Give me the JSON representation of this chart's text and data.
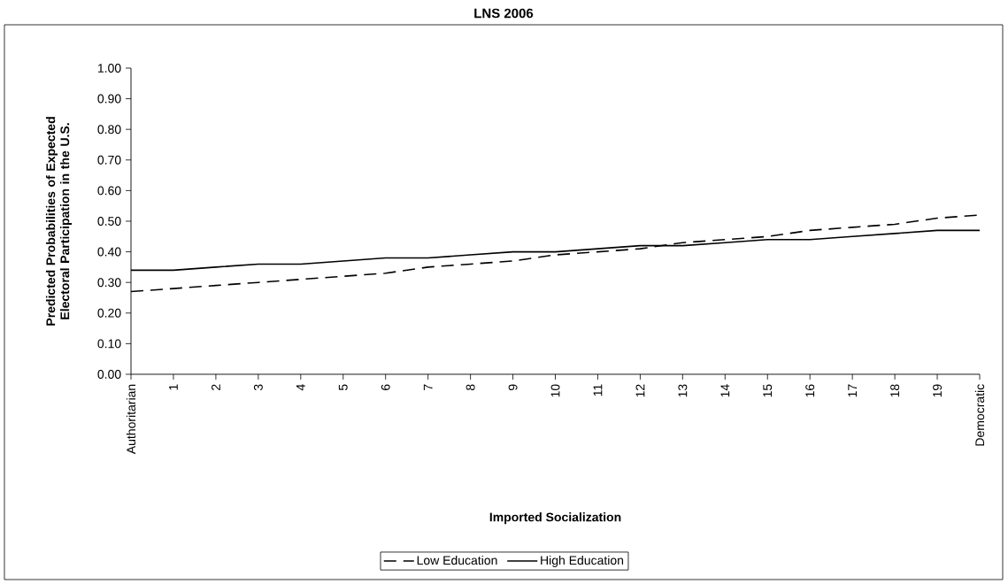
{
  "chart_data": {
    "type": "line",
    "title": "LNS 2006",
    "xlabel": "Imported Socialization",
    "ylabel": "Predicted Probabilities of Expected Electoral Participation in the U.S.",
    "categories": [
      "Authoritarian",
      "1",
      "2",
      "3",
      "4",
      "5",
      "6",
      "7",
      "8",
      "9",
      "10",
      "11",
      "12",
      "13",
      "14",
      "15",
      "16",
      "17",
      "18",
      "19",
      "Democratic"
    ],
    "series": [
      {
        "name": "Low Education",
        "color": "#000000",
        "line_style": "dashed",
        "values": [
          0.27,
          0.28,
          0.29,
          0.3,
          0.31,
          0.32,
          0.33,
          0.35,
          0.36,
          0.37,
          0.39,
          0.4,
          0.41,
          0.43,
          0.44,
          0.45,
          0.47,
          0.48,
          0.49,
          0.51,
          0.52
        ]
      },
      {
        "name": "High Education",
        "color": "#000000",
        "line_style": "solid",
        "values": [
          0.34,
          0.34,
          0.35,
          0.36,
          0.36,
          0.37,
          0.38,
          0.38,
          0.39,
          0.4,
          0.4,
          0.41,
          0.42,
          0.42,
          0.43,
          0.44,
          0.44,
          0.45,
          0.46,
          0.47,
          0.47
        ]
      }
    ],
    "ylim": [
      0,
      1
    ],
    "yticks": [
      {
        "value": 0,
        "label": "0.00"
      },
      {
        "value": 0.1,
        "label": "0.10"
      },
      {
        "value": 0.2,
        "label": "0.20"
      },
      {
        "value": 0.3,
        "label": "0.30"
      },
      {
        "value": 0.4,
        "label": "0.40"
      },
      {
        "value": 0.5,
        "label": "0.50"
      },
      {
        "value": 0.6,
        "label": "0.60"
      },
      {
        "value": 0.7,
        "label": "0.70"
      },
      {
        "value": 0.8,
        "label": "0.80"
      },
      {
        "value": 0.9,
        "label": "0.90"
      },
      {
        "value": 1,
        "label": "1.00"
      }
    ],
    "grid": false,
    "legend": "bottom",
    "marker": "none"
  }
}
